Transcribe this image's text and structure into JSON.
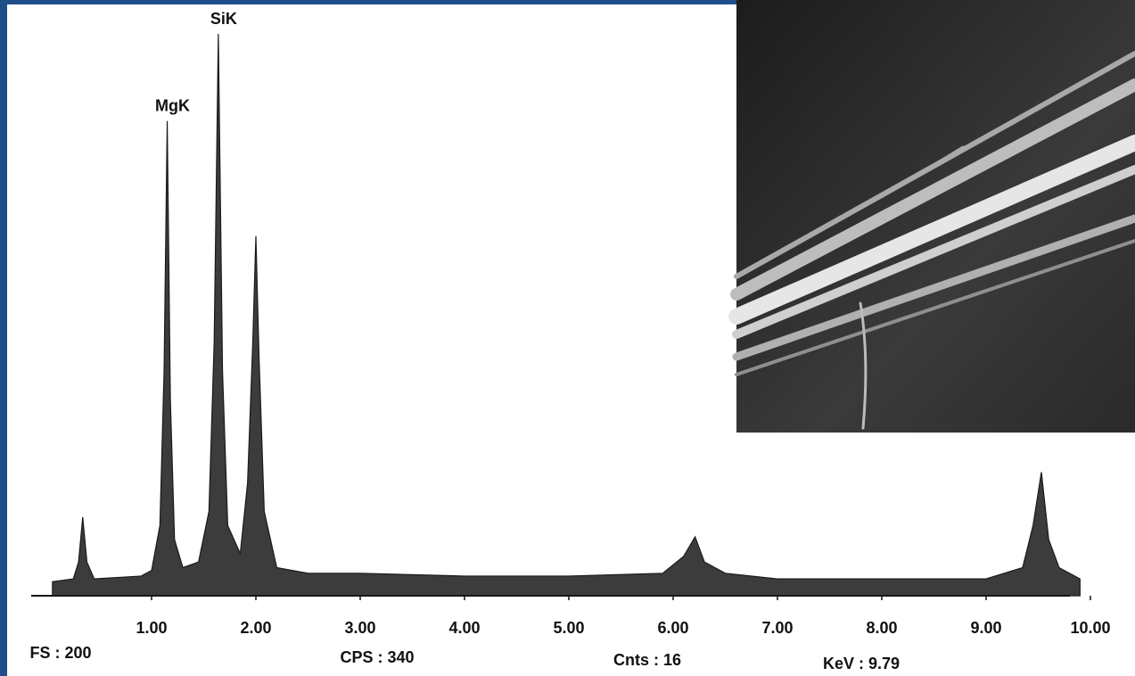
{
  "chart_data": {
    "type": "area",
    "x": [
      0.05,
      0.25,
      0.3,
      0.34,
      0.38,
      0.45,
      0.9,
      1.0,
      1.08,
      1.12,
      1.15,
      1.18,
      1.22,
      1.3,
      1.45,
      1.55,
      1.6,
      1.64,
      1.68,
      1.73,
      1.85,
      1.92,
      1.97,
      2.0,
      2.03,
      2.08,
      2.2,
      2.5,
      3.0,
      4.0,
      5.0,
      5.9,
      6.1,
      6.21,
      6.3,
      6.5,
      7.0,
      8.0,
      9.0,
      9.35,
      9.45,
      9.53,
      9.6,
      9.7,
      9.9
    ],
    "values": [
      5,
      6,
      12,
      28,
      12,
      6,
      7,
      9,
      25,
      80,
      169,
      70,
      20,
      10,
      12,
      30,
      90,
      200,
      80,
      25,
      15,
      40,
      90,
      128,
      85,
      30,
      10,
      8,
      8,
      7,
      7,
      8,
      14,
      21,
      12,
      8,
      6,
      6,
      6,
      10,
      25,
      44,
      20,
      10,
      6
    ],
    "color": "#1a1a1a",
    "xlim": [
      0,
      10
    ],
    "ylim": [
      0,
      200
    ],
    "xticks": [
      {
        "value": 1,
        "label": "1.00"
      },
      {
        "value": 2,
        "label": "2.00"
      },
      {
        "value": 3,
        "label": "3.00"
      },
      {
        "value": 4,
        "label": "4.00"
      },
      {
        "value": 5,
        "label": "5.00"
      },
      {
        "value": 6,
        "label": "6.00"
      },
      {
        "value": 7,
        "label": "7.00"
      },
      {
        "value": 8,
        "label": "8.00"
      },
      {
        "value": 9,
        "label": "9.00"
      },
      {
        "value": 10,
        "label": "10.00"
      }
    ],
    "annotations": [
      {
        "text": "MgK",
        "x": 1.15,
        "y": 169
      },
      {
        "text": "SiK",
        "x": 1.64,
        "y": 200
      }
    ],
    "footer": [
      "FS : 200",
      "CPS : 340",
      "Cnts : 16",
      "KeV : 9.79"
    ]
  }
}
